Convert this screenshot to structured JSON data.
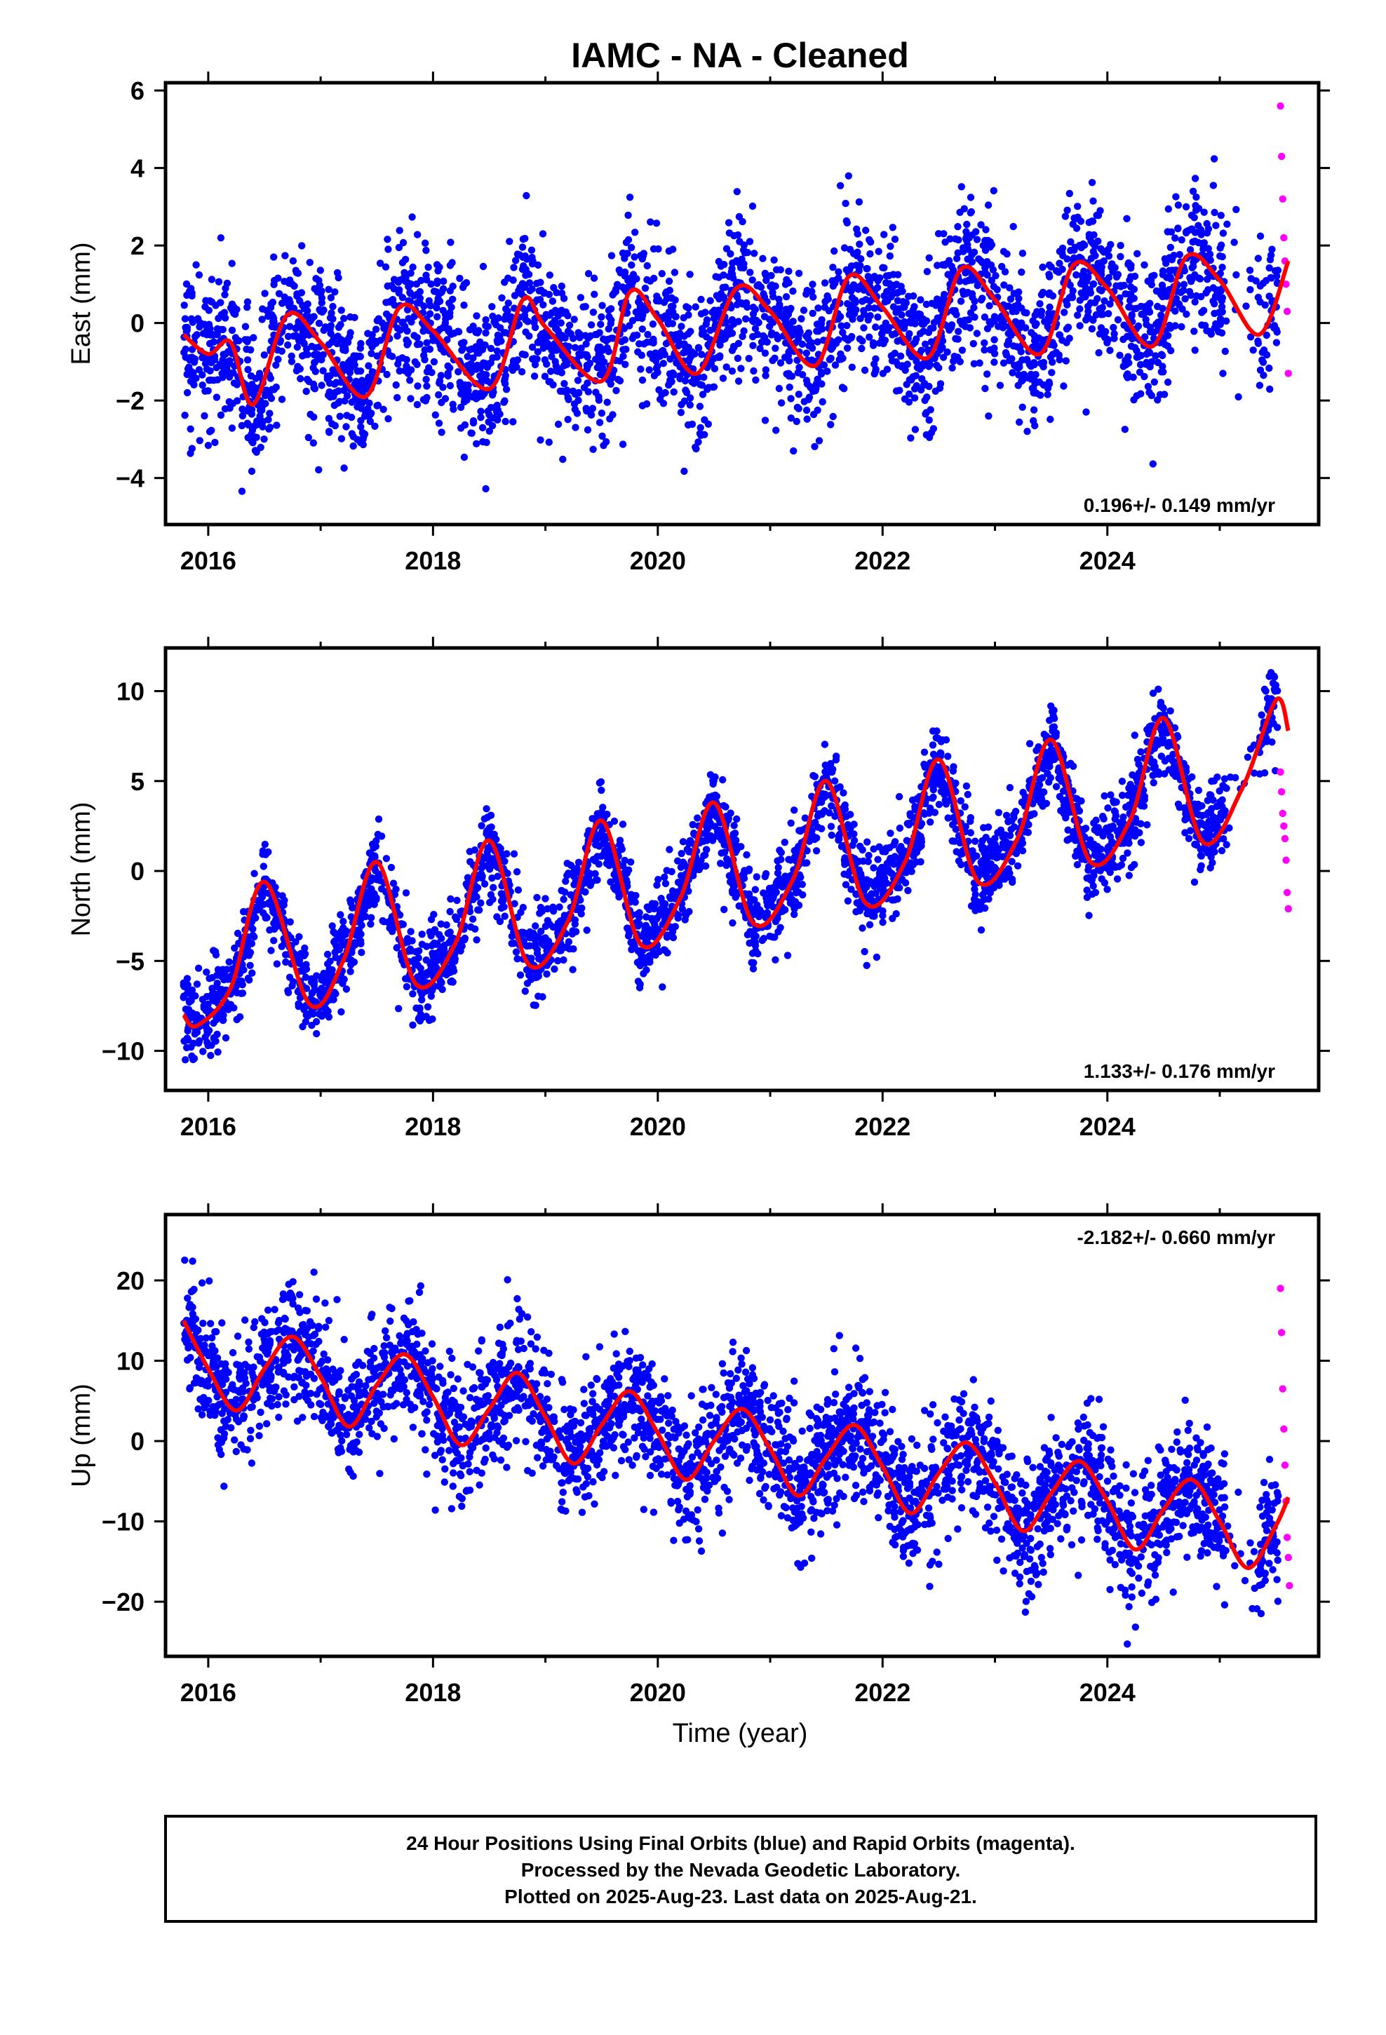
{
  "title": "IAMC  - NA - Cleaned",
  "xlabel": "Time (year)",
  "x_ticks": [
    "2016",
    "2018",
    "2020",
    "2022",
    "2024"
  ],
  "colors": {
    "final": "#0000ff",
    "rapid": "#ff00ff",
    "fit": "#ff0000"
  },
  "caption": [
    "24 Hour Positions Using Final Orbits (blue) and Rapid Orbits (magenta).",
    "Processed by the Nevada Geodetic Laboratory.",
    "Plotted on 2025-Aug-23. Last data on 2025-Aug-21."
  ],
  "chart_data": [
    {
      "type": "scatter",
      "ylabel": "East (mm)",
      "xlim": [
        2015.62,
        2025.88
      ],
      "ylim": [
        -5.2,
        6.2
      ],
      "y_ticks": [
        "6",
        "4",
        "2",
        "0",
        "−2",
        "−4"
      ],
      "rate_label": "0.196+/- 0.149 mm/yr",
      "rate_position": "bottom-right",
      "series": [
        {
          "name": "Final Orbits (blue)",
          "x_range": [
            2015.78,
            2025.52
          ],
          "trend_slope_mm_per_yr": 0.196,
          "trend_value_2015_8": -0.6,
          "annual_amplitude": 0.7,
          "annual_phase_peak": 0.72,
          "scatter_sd": 1.0,
          "approx_points": 3200
        },
        {
          "name": "Rapid Orbits (magenta)",
          "x": [
            2025.54,
            2025.55,
            2025.56,
            2025.57,
            2025.58,
            2025.59,
            2025.6,
            2025.61
          ],
          "y": [
            5.6,
            4.3,
            3.2,
            2.2,
            1.6,
            1.0,
            0.3,
            -1.3
          ]
        }
      ],
      "fit_curve": {
        "x": [
          2015.78,
          2016.0,
          2016.2,
          2016.4,
          2016.7,
          2017.0,
          2017.4,
          2017.7,
          2018.0,
          2018.5,
          2018.8,
          2019.0,
          2019.5,
          2019.75,
          2020.0,
          2020.35,
          2020.7,
          2021.0,
          2021.4,
          2021.7,
          2022.0,
          2022.4,
          2022.7,
          2023.0,
          2023.4,
          2023.7,
          2024.0,
          2024.4,
          2024.7,
          2025.0,
          2025.35,
          2025.61
        ],
        "y": [
          -0.3,
          -0.8,
          -0.5,
          -2.1,
          0.2,
          -0.5,
          -1.9,
          0.4,
          -0.2,
          -1.7,
          0.6,
          -0.1,
          -1.5,
          0.8,
          0.1,
          -1.3,
          0.9,
          0.3,
          -1.1,
          1.2,
          0.4,
          -0.9,
          1.4,
          0.6,
          -0.8,
          1.5,
          0.9,
          -0.6,
          1.7,
          1.1,
          -0.3,
          1.6
        ]
      }
    },
    {
      "type": "scatter",
      "ylabel": "North (mm)",
      "xlim": [
        2015.62,
        2025.88
      ],
      "ylim": [
        -12.2,
        12.4
      ],
      "y_ticks": [
        "10",
        "5",
        "0",
        "−5",
        "−10"
      ],
      "rate_label": "1.133+/- 0.176 mm/yr",
      "rate_position": "bottom-right",
      "series": [
        {
          "name": "Final Orbits (blue)",
          "x_range": [
            2015.78,
            2025.52
          ],
          "trend_slope_mm_per_yr": 1.133,
          "trend_value_2015_8": -8.5,
          "annual_amplitude": 3.8,
          "annual_phase_peak": 0.5,
          "scatter_sd": 1.2,
          "approx_points": 3200
        },
        {
          "name": "Rapid Orbits (magenta)",
          "x": [
            2025.54,
            2025.55,
            2025.56,
            2025.57,
            2025.58,
            2025.59,
            2025.6,
            2025.61
          ],
          "y": [
            5.5,
            4.4,
            3.2,
            2.5,
            1.8,
            0.6,
            -1.2,
            -2.1
          ]
        }
      ],
      "fit_curve": {
        "x": [
          2015.78,
          2015.9,
          2016.2,
          2016.5,
          2016.9,
          2017.2,
          2017.5,
          2017.85,
          2018.2,
          2018.5,
          2018.85,
          2019.2,
          2019.5,
          2019.85,
          2020.2,
          2020.5,
          2020.85,
          2021.2,
          2021.5,
          2021.85,
          2022.2,
          2022.5,
          2022.85,
          2023.2,
          2023.5,
          2023.85,
          2024.2,
          2024.5,
          2024.85,
          2025.2,
          2025.5,
          2025.61
        ],
        "y": [
          -8.0,
          -8.6,
          -6.5,
          -0.6,
          -7.4,
          -5.0,
          0.5,
          -6.3,
          -4.0,
          1.7,
          -5.2,
          -2.8,
          2.8,
          -4.1,
          -1.5,
          3.8,
          -2.9,
          -0.5,
          5.0,
          -1.8,
          0.5,
          6.2,
          -0.6,
          1.8,
          7.3,
          0.5,
          2.8,
          8.5,
          1.6,
          4.6,
          9.5,
          7.8
        ]
      }
    },
    {
      "type": "scatter",
      "ylabel": "Up (mm)",
      "xlim": [
        2015.62,
        2025.88
      ],
      "ylim": [
        -26.8,
        28.2
      ],
      "y_ticks": [
        "20",
        "10",
        "0",
        "−10",
        "−20"
      ],
      "rate_label": "-2.182+/- 0.660 mm/yr",
      "rate_position": "top-right",
      "series": [
        {
          "name": "Final Orbits (blue)",
          "x_range": [
            2015.78,
            2025.52
          ],
          "trend_slope_mm_per_yr": -2.182,
          "trend_value_2015_8": 9.5,
          "annual_amplitude": 4.6,
          "annual_phase_peak": 0.75,
          "scatter_sd": 4.0,
          "approx_points": 3200
        },
        {
          "name": "Rapid Orbits (magenta)",
          "x": [
            2025.54,
            2025.55,
            2025.56,
            2025.57,
            2025.58,
            2025.59,
            2025.6,
            2025.61,
            2025.62
          ],
          "y": [
            19.0,
            13.5,
            6.5,
            1.5,
            -3.0,
            -7.5,
            -12.0,
            -14.5,
            -18.0
          ]
        }
      ],
      "fit_curve": {
        "x": [
          2015.78,
          2016.0,
          2016.25,
          2016.5,
          2016.75,
          2017.0,
          2017.25,
          2017.5,
          2017.75,
          2018.0,
          2018.25,
          2018.5,
          2018.75,
          2019.0,
          2019.25,
          2019.5,
          2019.75,
          2020.0,
          2020.25,
          2020.5,
          2020.75,
          2021.0,
          2021.25,
          2021.5,
          2021.75,
          2022.0,
          2022.25,
          2022.5,
          2022.75,
          2023.0,
          2023.25,
          2023.5,
          2023.75,
          2024.0,
          2024.25,
          2024.5,
          2024.75,
          2025.0,
          2025.25,
          2025.5,
          2025.61
        ],
        "y": [
          15.0,
          9.0,
          3.8,
          9.0,
          13.0,
          8.0,
          1.8,
          7.0,
          10.8,
          5.5,
          -0.5,
          4.0,
          8.5,
          3.0,
          -2.8,
          2.0,
          6.2,
          1.0,
          -4.8,
          0.0,
          4.0,
          -1.0,
          -6.8,
          -2.0,
          2.0,
          -3.2,
          -9.0,
          -4.0,
          -0.2,
          -5.2,
          -11.2,
          -6.5,
          -2.5,
          -7.5,
          -13.5,
          -8.5,
          -4.8,
          -10.0,
          -15.8,
          -10.5,
          -7.0
        ]
      }
    }
  ]
}
